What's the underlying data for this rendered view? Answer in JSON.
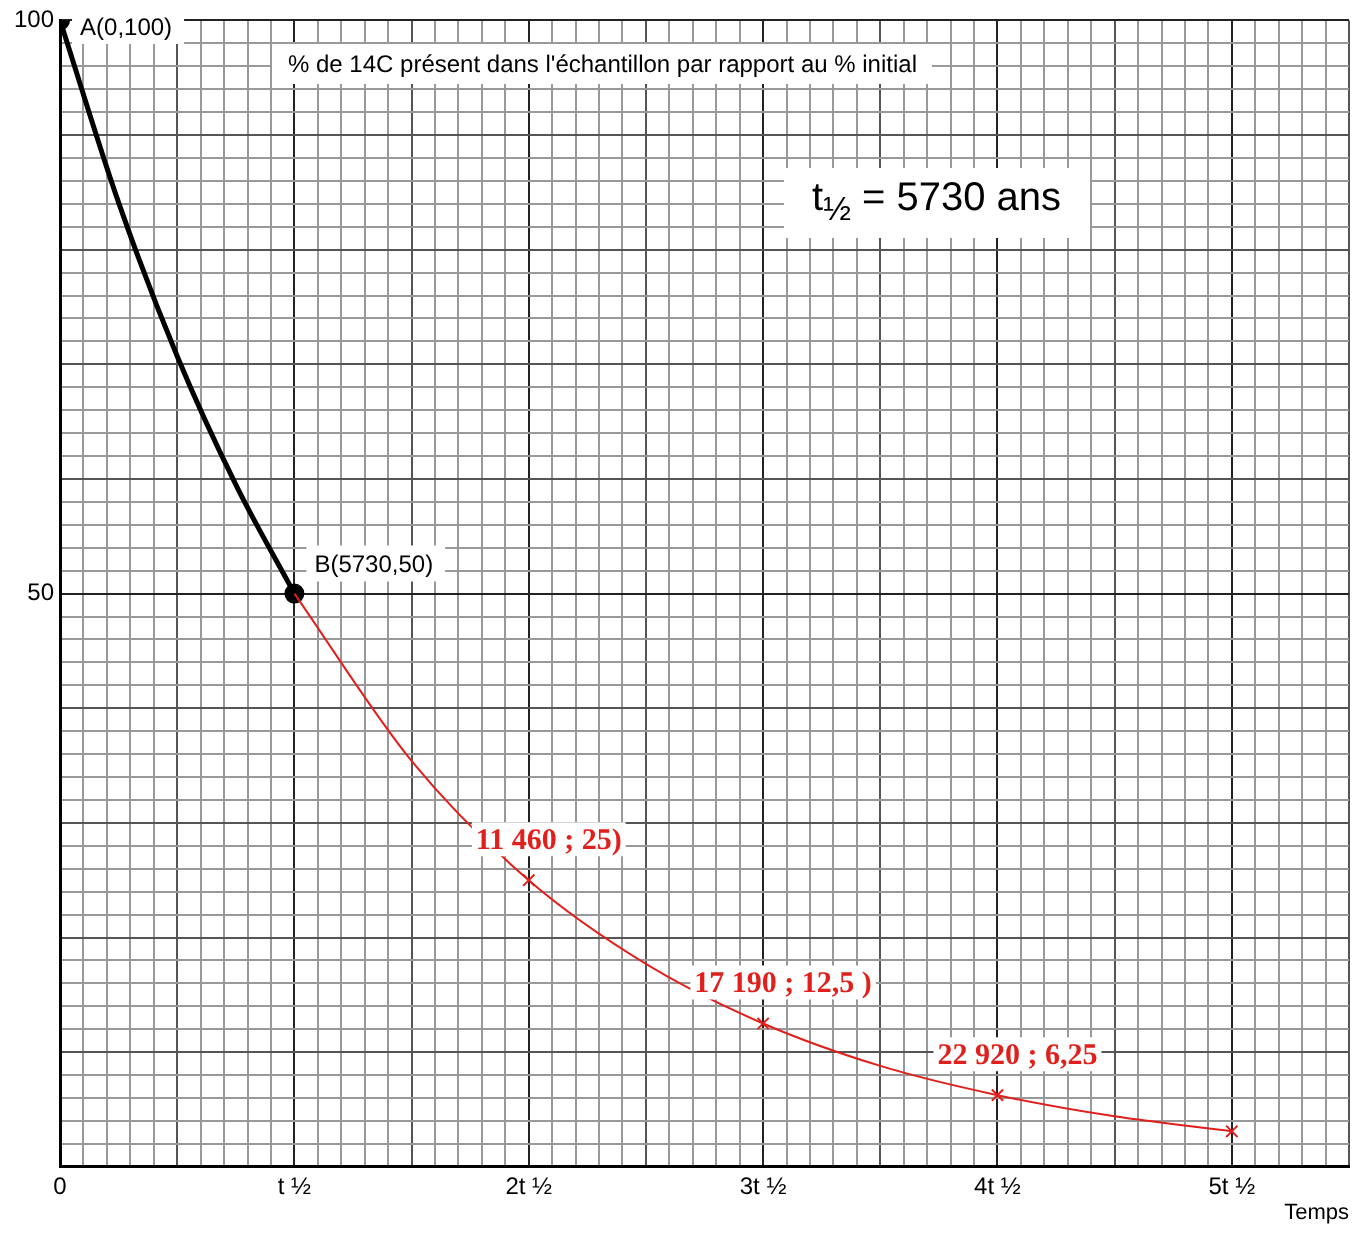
{
  "chart_data": {
    "type": "line",
    "xlabel": "Temps",
    "annotations": [
      "% de 14C présent dans l'échantillon par rapport au % initial",
      "t$_{½}$ = 5730 ans"
    ],
    "xlim": [
      0,
      5.5
    ],
    "xticks": [
      {
        "value": 0,
        "label": "0"
      },
      {
        "value": 0.1,
        "label": null
      },
      {
        "value": 0.2,
        "label": null
      },
      {
        "value": 0.3,
        "label": null
      },
      {
        "value": 0.4,
        "label": null
      },
      {
        "value": 0.5,
        "label": null
      },
      {
        "value": 0.6,
        "label": null
      },
      {
        "value": 0.7,
        "label": null
      },
      {
        "value": 0.8,
        "label": null
      },
      {
        "value": 0.9,
        "label": null
      },
      {
        "value": 1,
        "label": "t ½"
      },
      {
        "value": 1.1,
        "label": null
      },
      {
        "value": 1.2,
        "label": null
      },
      {
        "value": 1.3,
        "label": null
      },
      {
        "value": 1.4,
        "label": null
      },
      {
        "value": 1.5,
        "label": null
      },
      {
        "value": 1.6,
        "label": null
      },
      {
        "value": 1.7,
        "label": null
      },
      {
        "value": 1.8,
        "label": null
      },
      {
        "value": 1.9,
        "label": null
      },
      {
        "value": 2,
        "label": "2t ½"
      },
      {
        "value": 2.1,
        "label": null
      },
      {
        "value": 2.2,
        "label": null
      },
      {
        "value": 2.3,
        "label": null
      },
      {
        "value": 2.4,
        "label": null
      },
      {
        "value": 2.5,
        "label": null
      },
      {
        "value": 2.6,
        "label": null
      },
      {
        "value": 2.7,
        "label": null
      },
      {
        "value": 2.8,
        "label": null
      },
      {
        "value": 2.9,
        "label": null
      },
      {
        "value": 3,
        "label": "3t ½"
      },
      {
        "value": 3.1,
        "label": null
      },
      {
        "value": 3.2,
        "label": null
      },
      {
        "value": 3.3,
        "label": null
      },
      {
        "value": 3.4,
        "label": null
      },
      {
        "value": 3.5,
        "label": null
      },
      {
        "value": 3.6,
        "label": null
      },
      {
        "value": 3.7,
        "label": null
      },
      {
        "value": 3.8,
        "label": null
      },
      {
        "value": 3.9,
        "label": null
      },
      {
        "value": 4,
        "label": "4t ½"
      },
      {
        "value": 4.1,
        "label": null
      },
      {
        "value": 4.2,
        "label": null
      },
      {
        "value": 4.3,
        "label": null
      },
      {
        "value": 4.4,
        "label": null
      },
      {
        "value": 4.5,
        "label": null
      },
      {
        "value": 4.6,
        "label": null
      },
      {
        "value": 4.7,
        "label": null
      },
      {
        "value": 4.8,
        "label": null
      },
      {
        "value": 4.9,
        "label": null
      },
      {
        "value": 5,
        "label": "5t ½"
      },
      {
        "value": 5.1,
        "label": null
      },
      {
        "value": 5.2,
        "label": null
      },
      {
        "value": 5.3,
        "label": null
      },
      {
        "value": 5.4,
        "label": null
      },
      {
        "value": 5.5,
        "label": null
      }
    ],
    "ylim": [
      0,
      100
    ],
    "yticks": [
      {
        "value": 0,
        "label": null
      },
      {
        "value": 2,
        "label": null
      },
      {
        "value": 4,
        "label": null
      },
      {
        "value": 6,
        "label": null
      },
      {
        "value": 8,
        "label": null
      },
      {
        "value": 10,
        "label": null
      },
      {
        "value": 12,
        "label": null
      },
      {
        "value": 14,
        "label": null
      },
      {
        "value": 16,
        "label": null
      },
      {
        "value": 18,
        "label": null
      },
      {
        "value": 20,
        "label": null
      },
      {
        "value": 22,
        "label": null
      },
      {
        "value": 24,
        "label": null
      },
      {
        "value": 26,
        "label": null
      },
      {
        "value": 28,
        "label": null
      },
      {
        "value": 30,
        "label": null
      },
      {
        "value": 32,
        "label": null
      },
      {
        "value": 34,
        "label": null
      },
      {
        "value": 36,
        "label": null
      },
      {
        "value": 38,
        "label": null
      },
      {
        "value": 40,
        "label": null
      },
      {
        "value": 42,
        "label": null
      },
      {
        "value": 44,
        "label": null
      },
      {
        "value": 46,
        "label": null
      },
      {
        "value": 48,
        "label": null
      },
      50,
      {
        "value": 52,
        "label": null
      },
      {
        "value": 54,
        "label": null
      },
      {
        "value": 56,
        "label": null
      },
      {
        "value": 58,
        "label": null
      },
      {
        "value": 60,
        "label": null
      },
      {
        "value": 62,
        "label": null
      },
      {
        "value": 64,
        "label": null
      },
      {
        "value": 66,
        "label": null
      },
      {
        "value": 68,
        "label": null
      },
      {
        "value": 70,
        "label": null
      },
      {
        "value": 72,
        "label": null
      },
      {
        "value": 74,
        "label": null
      },
      {
        "value": 76,
        "label": null
      },
      {
        "value": 78,
        "label": null
      },
      {
        "value": 80,
        "label": null
      },
      {
        "value": 82,
        "label": null
      },
      {
        "value": 84,
        "label": null
      },
      {
        "value": 86,
        "label": null
      },
      {
        "value": 88,
        "label": null
      },
      {
        "value": 90,
        "label": null
      },
      {
        "value": 92,
        "label": null
      },
      {
        "value": 94,
        "label": null
      },
      {
        "value": 96,
        "label": null
      },
      {
        "value": 98,
        "label": null
      },
      100
    ],
    "grid": true,
    "line_style": "solid",
    "series": [
      {
        "color": "#000000",
        "marker": "none",
        "x": [
          0,
          0.25,
          0.5,
          0.75,
          1
        ],
        "values": [
          100,
          84.1,
          70.7,
          59.5,
          50
        ]
      },
      {
        "color": "#e0201c",
        "marker": "none",
        "x": [
          1,
          1.5,
          2,
          2.5,
          3,
          3.5,
          4,
          4.5,
          5
        ],
        "values": [
          50,
          35.4,
          25,
          17.7,
          12.5,
          8.8,
          6.25,
          4.4,
          3.1
        ]
      },
      {
        "type": "scatter",
        "color": "#000000",
        "marker": "circle",
        "x": [
          0,
          1
        ],
        "values": [
          100,
          50
        ],
        "value_labels": [
          "A(0,100)",
          "B(5730,50)"
        ]
      },
      {
        "type": "scatter",
        "color": "#e0201c",
        "marker": "cross",
        "x": [
          2,
          3,
          4,
          5
        ],
        "values": [
          25,
          12.5,
          6.25,
          3.1
        ],
        "value_labels": [
          "11 460 ; 25)",
          "17 190 ; 12,5 )",
          "22 920 ; 6,25",
          null
        ]
      }
    ]
  }
}
